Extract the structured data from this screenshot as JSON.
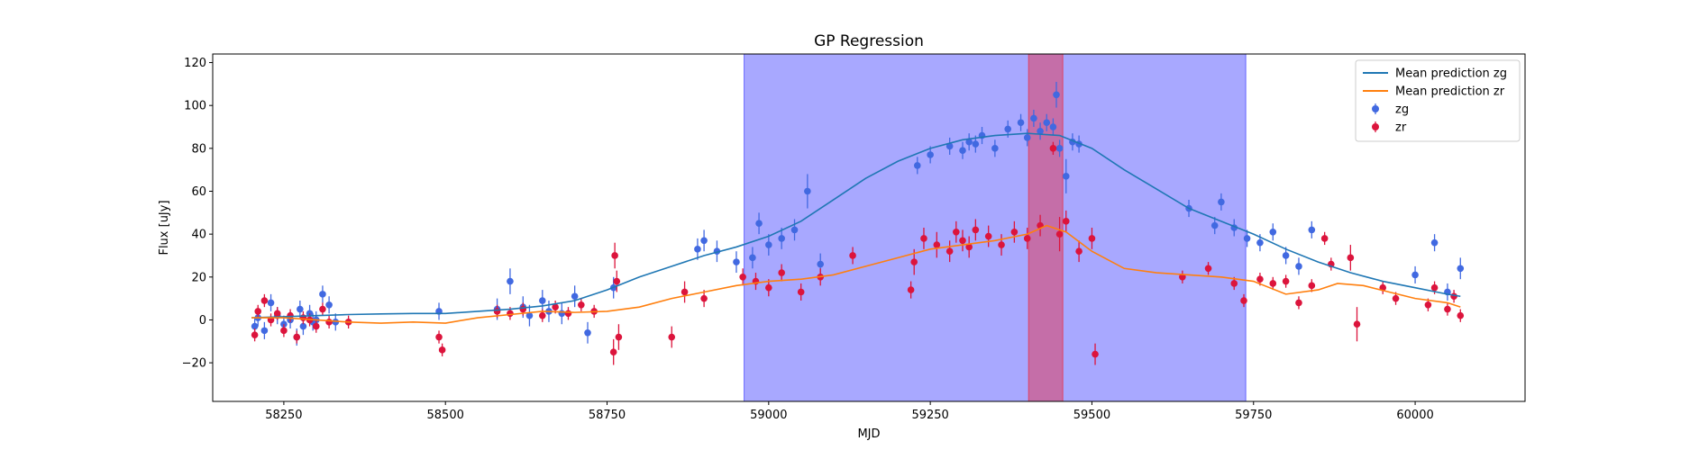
{
  "chart_data": {
    "type": "scatter",
    "title": "GP Regression",
    "xlabel": "MJD",
    "ylabel": "Flux [uJy]",
    "xlim": [
      58140,
      60170
    ],
    "ylim": [
      -38,
      124
    ],
    "xticks": [
      58250,
      58500,
      58750,
      59000,
      59250,
      59500,
      59750,
      60000
    ],
    "yticks": [
      -20,
      0,
      20,
      40,
      60,
      80,
      100,
      120
    ],
    "grid": false,
    "legend_position": "top-right",
    "shaded_regions": [
      {
        "x": [
          58962,
          59738
        ],
        "color": "#0000ff",
        "opacity": 0.34
      },
      {
        "x": [
          59402,
          59455
        ],
        "color": "#ff0000",
        "opacity": 0.34
      }
    ],
    "lines": [
      {
        "name": "Mean prediction zg",
        "color": "#1f77b4",
        "x": [
          58200,
          58250,
          58300,
          58350,
          58400,
          58450,
          58500,
          58550,
          58600,
          58650,
          58700,
          58750,
          58800,
          58850,
          58900,
          58950,
          59000,
          59050,
          59100,
          59150,
          59200,
          59250,
          59300,
          59350,
          59400,
          59450,
          59500,
          59550,
          59600,
          59650,
          59700,
          59750,
          59800,
          59850,
          59900,
          59950,
          60000,
          60050,
          60070
        ],
        "y": [
          1,
          1.5,
          2,
          2.5,
          2.8,
          3,
          3,
          4,
          5,
          6.5,
          9,
          14,
          20,
          25,
          30,
          34,
          39,
          46,
          56,
          66,
          74,
          80,
          84,
          86,
          87,
          86,
          80,
          70,
          61,
          52,
          46,
          40,
          33,
          27,
          22,
          18,
          15,
          12,
          11
        ]
      },
      {
        "name": "Mean prediction zr",
        "color": "#ff7f0e",
        "x": [
          58200,
          58250,
          58300,
          58350,
          58400,
          58450,
          58500,
          58550,
          58600,
          58650,
          58700,
          58750,
          58800,
          58850,
          58900,
          58950,
          59000,
          59050,
          59100,
          59150,
          59200,
          59250,
          59300,
          59350,
          59400,
          59430,
          59460,
          59500,
          59550,
          59600,
          59650,
          59700,
          59750,
          59800,
          59850,
          59880,
          59920,
          59960,
          60000,
          60050,
          60070
        ],
        "y": [
          1,
          1,
          0,
          -1,
          -1.5,
          -1,
          -1.5,
          1,
          2.5,
          4,
          3.5,
          4,
          6,
          10,
          13,
          16,
          18,
          19,
          21,
          25,
          29,
          33,
          35,
          37,
          40,
          44,
          41,
          32,
          24,
          22,
          21,
          20,
          18,
          12,
          14,
          17,
          16,
          13,
          10,
          8,
          6
        ]
      }
    ],
    "series": [
      {
        "name": "zg",
        "color": "#4169e1",
        "x": [
          58205,
          58210,
          58220,
          58230,
          58240,
          58250,
          58260,
          58270,
          58275,
          58280,
          58290,
          58295,
          58300,
          58310,
          58320,
          58330,
          58490,
          58580,
          58600,
          58620,
          58630,
          58650,
          58660,
          58680,
          58700,
          58720,
          58760,
          58890,
          58900,
          58920,
          58950,
          58975,
          58985,
          59000,
          59020,
          59040,
          59060,
          59080,
          59230,
          59250,
          59280,
          59300,
          59310,
          59320,
          59330,
          59350,
          59370,
          59390,
          59400,
          59410,
          59420,
          59430,
          59440,
          59445,
          59450,
          59460,
          59470,
          59480,
          59650,
          59690,
          59700,
          59720,
          59740,
          59760,
          59780,
          59800,
          59820,
          59840,
          60000,
          60030,
          60050,
          60070
        ],
        "y": [
          -3,
          1,
          -5,
          8,
          2,
          -2,
          0,
          -8,
          5,
          -3,
          3,
          -1,
          0,
          12,
          7,
          -1,
          4,
          5,
          18,
          6,
          2,
          9,
          4,
          3,
          11,
          -6,
          15,
          33,
          37,
          32,
          27,
          29,
          45,
          35,
          38,
          42,
          60,
          26,
          72,
          77,
          81,
          79,
          83,
          82,
          86,
          80,
          89,
          92,
          85,
          94,
          88,
          92,
          90,
          105,
          80,
          67,
          83,
          82,
          52,
          44,
          55,
          43,
          38,
          36,
          41,
          30,
          25,
          42,
          21,
          36,
          13,
          24
        ],
        "err": [
          4,
          4,
          4,
          4,
          4,
          4,
          4,
          4,
          4,
          4,
          4,
          4,
          4,
          4,
          4,
          4,
          4,
          5,
          6,
          5,
          5,
          5,
          5,
          5,
          5,
          5,
          5,
          5,
          5,
          5,
          5,
          5,
          5,
          5,
          5,
          5,
          8,
          5,
          4,
          4,
          4,
          4,
          4,
          4,
          4,
          4,
          4,
          4,
          4,
          4,
          4,
          4,
          4,
          6,
          4,
          8,
          4,
          4,
          4,
          4,
          4,
          4,
          4,
          4,
          4,
          4,
          4,
          4,
          4,
          4,
          4,
          5
        ]
      },
      {
        "name": "zr",
        "color": "#dc143c",
        "x": [
          58205,
          58210,
          58220,
          58230,
          58240,
          58250,
          58260,
          58270,
          58280,
          58290,
          58300,
          58310,
          58320,
          58350,
          58490,
          58495,
          58580,
          58600,
          58620,
          58650,
          58670,
          58690,
          58710,
          58730,
          58760,
          58762,
          58765,
          58768,
          58850,
          58870,
          58900,
          58960,
          58980,
          59000,
          59020,
          59050,
          59080,
          59130,
          59220,
          59225,
          59240,
          59260,
          59280,
          59290,
          59300,
          59310,
          59320,
          59340,
          59360,
          59380,
          59400,
          59420,
          59440,
          59450,
          59460,
          59480,
          59500,
          59505,
          59640,
          59680,
          59720,
          59735,
          59760,
          59780,
          59800,
          59820,
          59840,
          59860,
          59870,
          59900,
          59910,
          59950,
          59970,
          60020,
          60030,
          60050,
          60060,
          60070
        ],
        "y": [
          -7,
          4,
          9,
          0,
          3,
          -5,
          2,
          -8,
          1,
          0,
          -3,
          5,
          -1,
          -1,
          -8,
          -14,
          4,
          3,
          5,
          2,
          6,
          3,
          7,
          4,
          -15,
          30,
          18,
          -8,
          -8,
          13,
          10,
          20,
          18,
          15,
          22,
          13,
          20,
          30,
          14,
          27,
          38,
          35,
          32,
          41,
          37,
          34,
          42,
          39,
          35,
          41,
          38,
          44,
          80,
          40,
          46,
          32,
          38,
          -16,
          20,
          24,
          17,
          9,
          19,
          17,
          18,
          8,
          16,
          38,
          26,
          29,
          -2,
          15,
          10,
          7,
          15,
          5,
          11,
          2
        ],
        "err": [
          3,
          3,
          3,
          3,
          3,
          3,
          3,
          3,
          3,
          3,
          3,
          3,
          3,
          3,
          3,
          3,
          3,
          3,
          3,
          3,
          3,
          3,
          3,
          3,
          6,
          6,
          5,
          6,
          5,
          5,
          4,
          4,
          4,
          4,
          4,
          4,
          4,
          4,
          4,
          6,
          5,
          6,
          5,
          5,
          5,
          5,
          5,
          5,
          5,
          5,
          5,
          5,
          3,
          8,
          5,
          5,
          5,
          5,
          3,
          3,
          3,
          3,
          3,
          3,
          3,
          3,
          3,
          3,
          3,
          6,
          8,
          3,
          3,
          3,
          3,
          3,
          3,
          3
        ]
      }
    ]
  }
}
